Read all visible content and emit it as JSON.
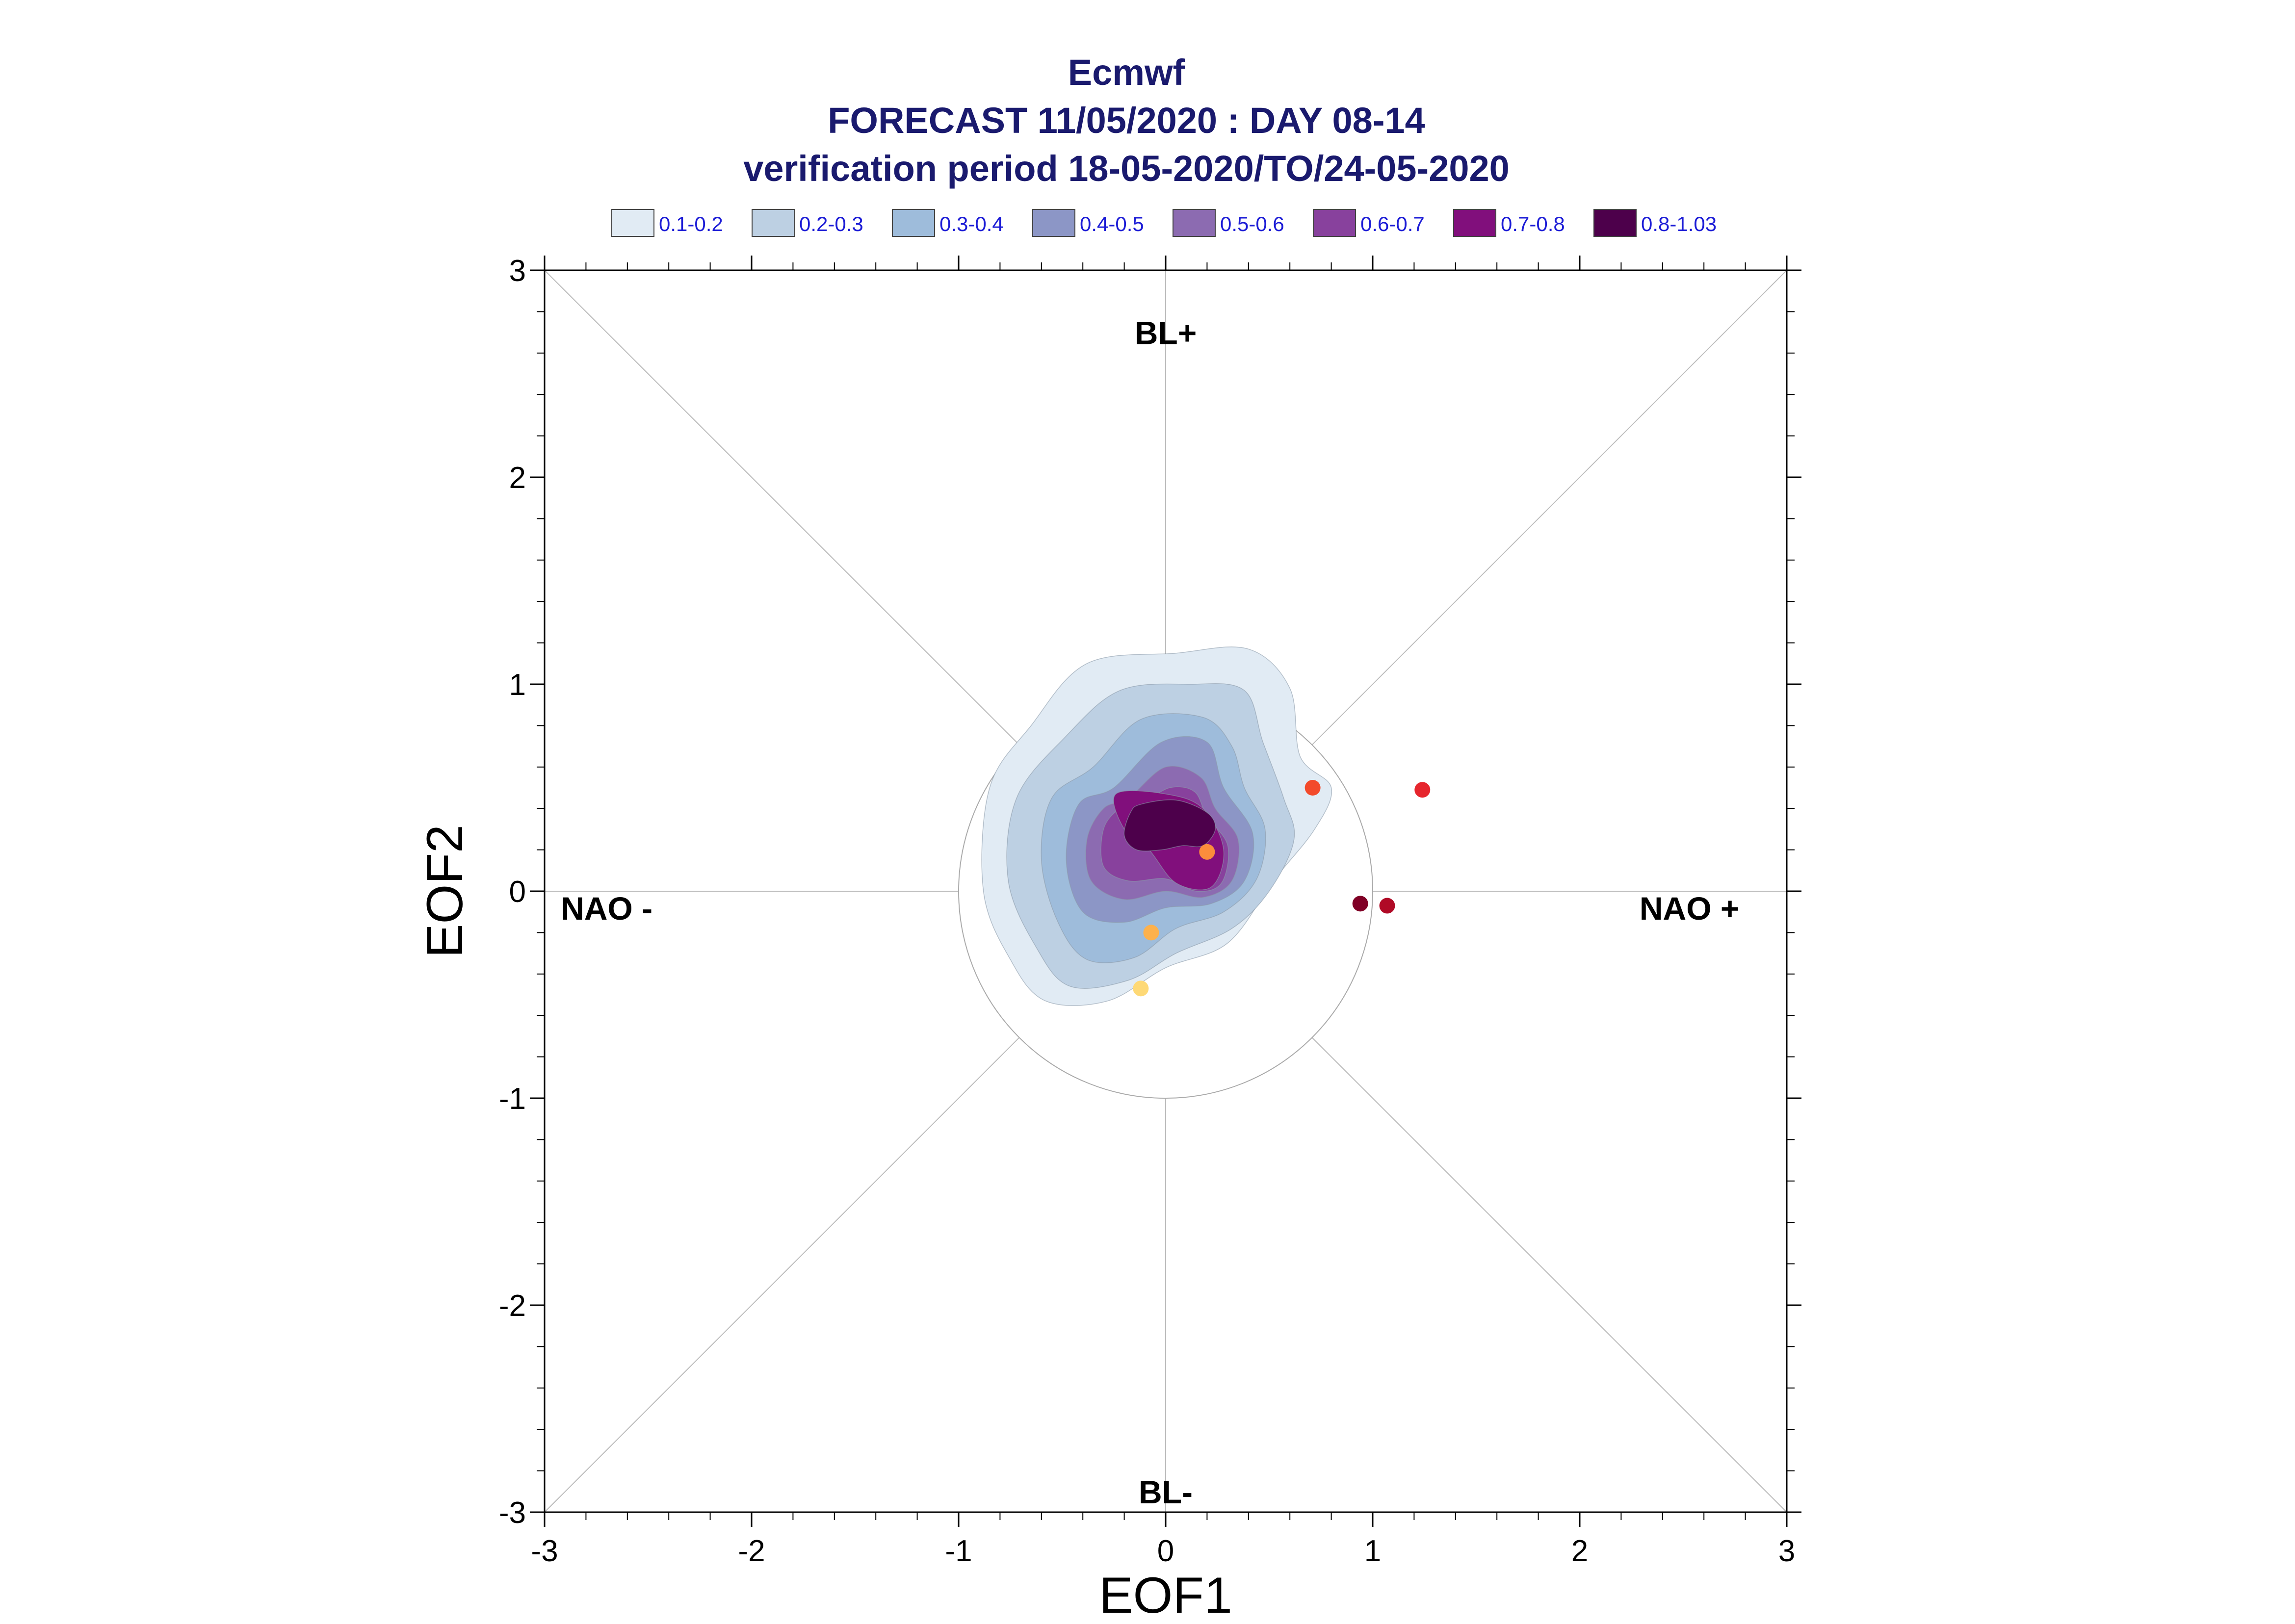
{
  "chart_data": {
    "type": "scatter",
    "title_lines": [
      "Ecmwf",
      "FORECAST 11/05/2020 : DAY 08-14",
      "verification period 18-05-2020/TO/24-05-2020"
    ],
    "xlabel": "EOF1",
    "ylabel": "EOF2",
    "xlim": [
      -3,
      3
    ],
    "ylim": [
      -3,
      3
    ],
    "x_ticks": [
      "-3",
      "-2",
      "-1",
      "0",
      "1",
      "2",
      "3"
    ],
    "y_ticks": [
      "-3",
      "-2",
      "-1",
      "0",
      "1",
      "2",
      "3"
    ],
    "grid": false,
    "legend_position": "top",
    "legend": [
      {
        "label": "0.1-0.2",
        "color": "#e1ebf4"
      },
      {
        "label": "0.2-0.3",
        "color": "#bdd0e3"
      },
      {
        "label": "0.3-0.4",
        "color": "#9ebcdb"
      },
      {
        "label": "0.4-0.5",
        "color": "#8c96c6"
      },
      {
        "label": "0.5-0.6",
        "color": "#8c6bb1"
      },
      {
        "label": "0.6-0.7",
        "color": "#88419d"
      },
      {
        "label": "0.7-0.8",
        "color": "#810f7c"
      },
      {
        "label": "0.8-1.03",
        "color": "#4d004b"
      }
    ],
    "regime_labels": [
      {
        "text": "BL+",
        "x": 0,
        "y": 2.7
      },
      {
        "text": "BL-",
        "x": 0,
        "y": -2.9
      },
      {
        "text": "NAO -",
        "x": -2.7,
        "y": -0.08
      },
      {
        "text": "NAO +",
        "x": 2.53,
        "y": -0.08
      }
    ],
    "reference_circle_radius": 1.0,
    "contours": [
      {
        "level": "0.1-0.2",
        "color": "#e1ebf4",
        "points": [
          [
            -0.65,
            0.8
          ],
          [
            -0.38,
            1.1
          ],
          [
            0.05,
            1.15
          ],
          [
            0.4,
            1.17
          ],
          [
            0.6,
            0.98
          ],
          [
            0.65,
            0.65
          ],
          [
            0.8,
            0.5
          ],
          [
            0.72,
            0.3
          ],
          [
            0.52,
            0.05
          ],
          [
            0.3,
            -0.25
          ],
          [
            0.0,
            -0.37
          ],
          [
            -0.28,
            -0.53
          ],
          [
            -0.58,
            -0.53
          ],
          [
            -0.75,
            -0.33
          ],
          [
            -0.88,
            0.0
          ],
          [
            -0.85,
            0.5
          ]
        ]
      },
      {
        "level": "0.2-0.3",
        "color": "#bdd0e3",
        "points": [
          [
            -0.48,
            0.75
          ],
          [
            -0.22,
            0.97
          ],
          [
            0.12,
            1.0
          ],
          [
            0.38,
            0.97
          ],
          [
            0.47,
            0.72
          ],
          [
            0.57,
            0.45
          ],
          [
            0.62,
            0.25
          ],
          [
            0.5,
            0.0
          ],
          [
            0.32,
            -0.18
          ],
          [
            0.05,
            -0.3
          ],
          [
            -0.18,
            -0.43
          ],
          [
            -0.46,
            -0.46
          ],
          [
            -0.62,
            -0.28
          ],
          [
            -0.76,
            0.05
          ],
          [
            -0.72,
            0.45
          ]
        ]
      },
      {
        "level": "0.3-0.4",
        "color": "#9ebcdb",
        "points": [
          [
            -0.35,
            0.6
          ],
          [
            -0.12,
            0.83
          ],
          [
            0.18,
            0.84
          ],
          [
            0.32,
            0.7
          ],
          [
            0.38,
            0.5
          ],
          [
            0.48,
            0.3
          ],
          [
            0.44,
            0.06
          ],
          [
            0.28,
            -0.1
          ],
          [
            0.05,
            -0.18
          ],
          [
            -0.15,
            -0.32
          ],
          [
            -0.38,
            -0.33
          ],
          [
            -0.52,
            -0.15
          ],
          [
            -0.6,
            0.15
          ],
          [
            -0.55,
            0.45
          ]
        ]
      },
      {
        "level": "0.4-0.5",
        "color": "#8c96c6",
        "points": [
          [
            -0.25,
            0.5
          ],
          [
            -0.02,
            0.72
          ],
          [
            0.2,
            0.72
          ],
          [
            0.28,
            0.5
          ],
          [
            0.42,
            0.28
          ],
          [
            0.38,
            0.05
          ],
          [
            0.22,
            -0.06
          ],
          [
            0.0,
            -0.08
          ],
          [
            -0.2,
            -0.15
          ],
          [
            -0.4,
            -0.1
          ],
          [
            -0.48,
            0.15
          ],
          [
            -0.42,
            0.42
          ]
        ]
      },
      {
        "level": "0.5-0.6",
        "color": "#8c6bb1",
        "points": [
          [
            -0.18,
            0.45
          ],
          [
            0.0,
            0.6
          ],
          [
            0.17,
            0.55
          ],
          [
            0.24,
            0.4
          ],
          [
            0.35,
            0.25
          ],
          [
            0.32,
            0.05
          ],
          [
            0.18,
            -0.03
          ],
          [
            0.0,
            0.0
          ],
          [
            -0.2,
            -0.04
          ],
          [
            -0.36,
            0.05
          ],
          [
            -0.38,
            0.25
          ],
          [
            -0.3,
            0.4
          ]
        ]
      },
      {
        "level": "0.6-0.7",
        "color": "#88419d",
        "points": [
          [
            -0.12,
            0.42
          ],
          [
            0.02,
            0.5
          ],
          [
            0.14,
            0.48
          ],
          [
            0.2,
            0.36
          ],
          [
            0.3,
            0.22
          ],
          [
            0.27,
            0.04
          ],
          [
            0.15,
            0.0
          ],
          [
            0.0,
            0.06
          ],
          [
            -0.18,
            0.05
          ],
          [
            -0.3,
            0.12
          ],
          [
            -0.3,
            0.3
          ],
          [
            -0.22,
            0.4
          ]
        ]
      },
      {
        "level": "0.7-0.8",
        "color": "#810f7c",
        "points": [
          [
            -0.24,
            0.47
          ],
          [
            0.0,
            0.47
          ],
          [
            0.18,
            0.4
          ],
          [
            0.28,
            0.2
          ],
          [
            0.22,
            0.02
          ],
          [
            0.05,
            0.04
          ],
          [
            -0.08,
            0.2
          ],
          [
            -0.2,
            0.3
          ]
        ]
      },
      {
        "level": "0.8-1.03",
        "color": "#4d004b",
        "points": [
          [
            -0.12,
            0.42
          ],
          [
            0.05,
            0.44
          ],
          [
            0.2,
            0.38
          ],
          [
            0.24,
            0.3
          ],
          [
            0.18,
            0.22
          ],
          [
            0.08,
            0.22
          ],
          [
            -0.02,
            0.2
          ],
          [
            -0.14,
            0.2
          ],
          [
            -0.2,
            0.27
          ],
          [
            -0.17,
            0.38
          ]
        ]
      }
    ],
    "points": [
      {
        "x": 1.24,
        "y": 0.49,
        "color": "#e6262d"
      },
      {
        "x": 0.71,
        "y": 0.5,
        "color": "#f34a2b"
      },
      {
        "x": 0.2,
        "y": 0.19,
        "color": "#fb8d3c"
      },
      {
        "x": -0.07,
        "y": -0.2,
        "color": "#fdb14c"
      },
      {
        "x": -0.12,
        "y": -0.47,
        "color": "#fed976"
      },
      {
        "x": 0.94,
        "y": -0.06,
        "color": "#800026"
      },
      {
        "x": 1.07,
        "y": -0.07,
        "color": "#b00a26"
      }
    ]
  }
}
